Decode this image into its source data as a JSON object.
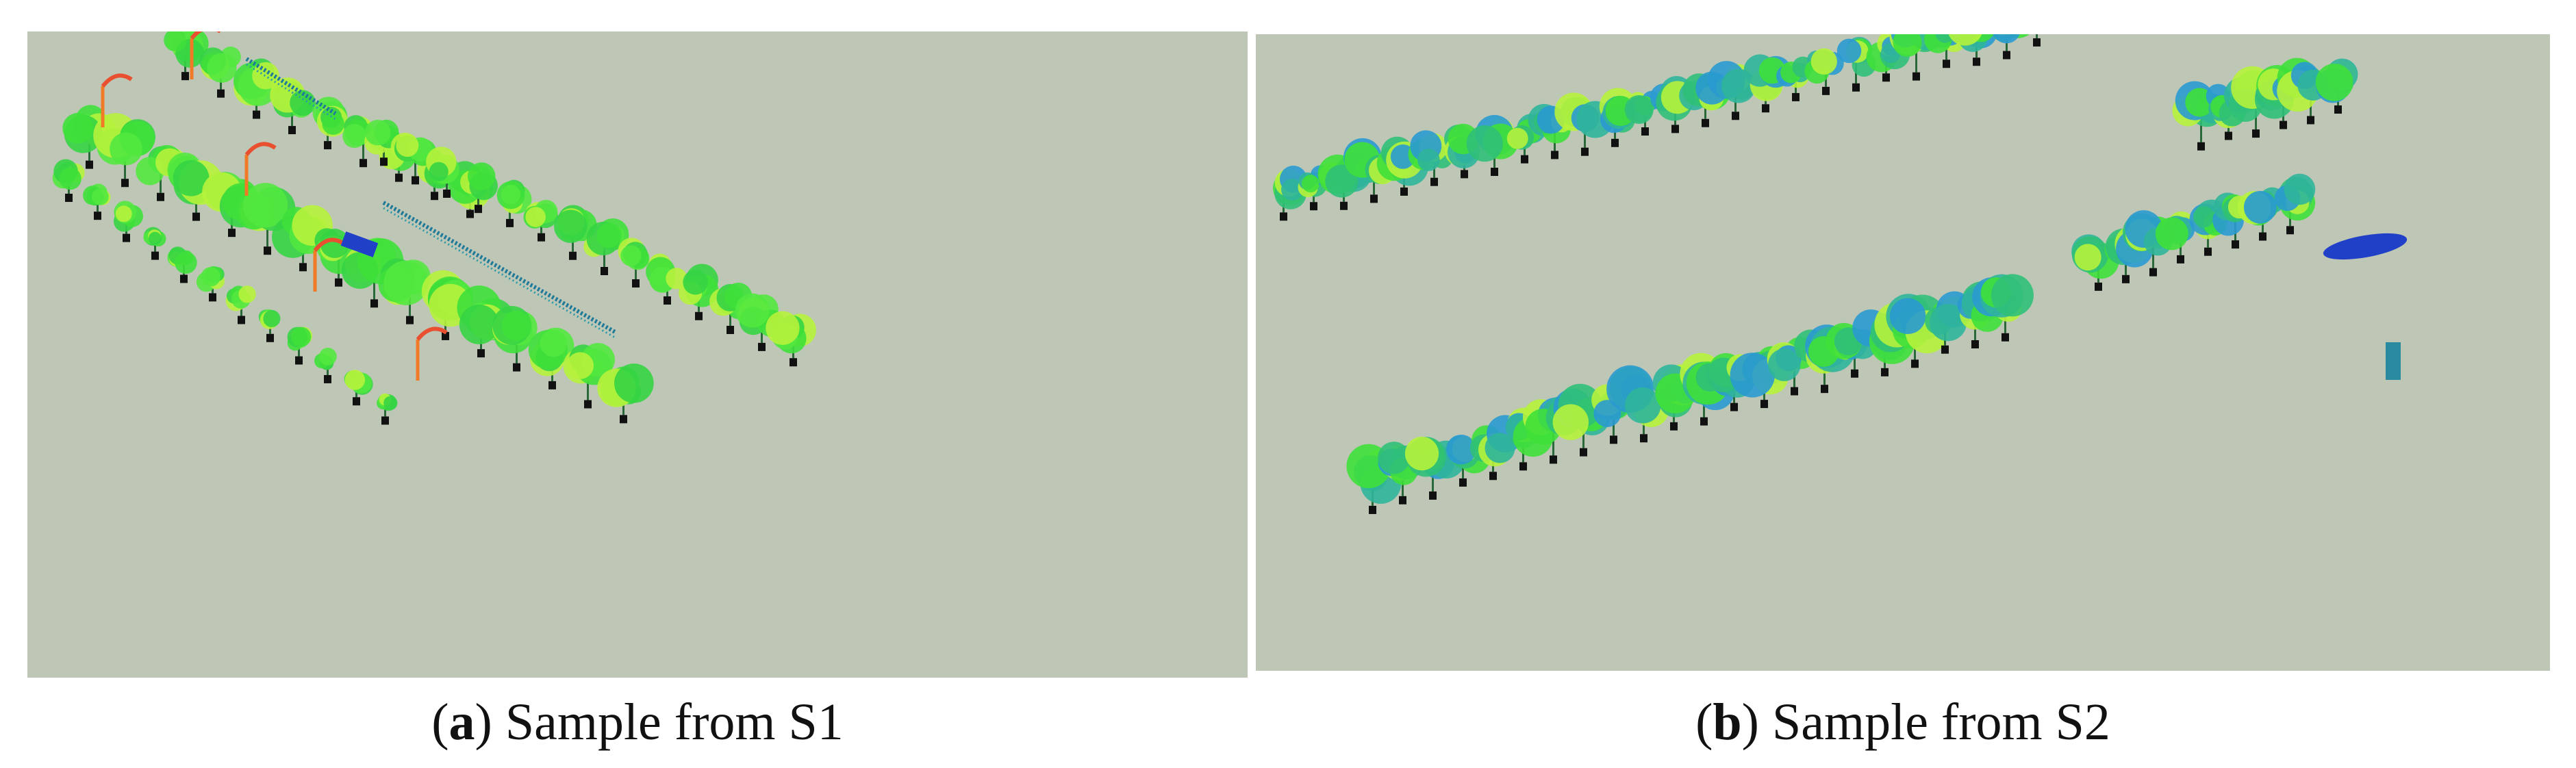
{
  "figure": {
    "panels": [
      {
        "id": "a",
        "letter": "a",
        "label": ") Sample from S1"
      },
      {
        "id": "b",
        "letter": "b",
        "label": ") Sample from S2"
      }
    ],
    "open_paren": "(",
    "colors": {
      "background": "#bec6b6",
      "tree_green": "#3fe03a",
      "tree_light": "#b6f23c",
      "tree_cyan": "#2fb59a",
      "highlight_orange": "#f07a26",
      "highlight_yellow": "#e8e23a",
      "low_blue": "#2140c8",
      "trunk": "#111111"
    }
  }
}
